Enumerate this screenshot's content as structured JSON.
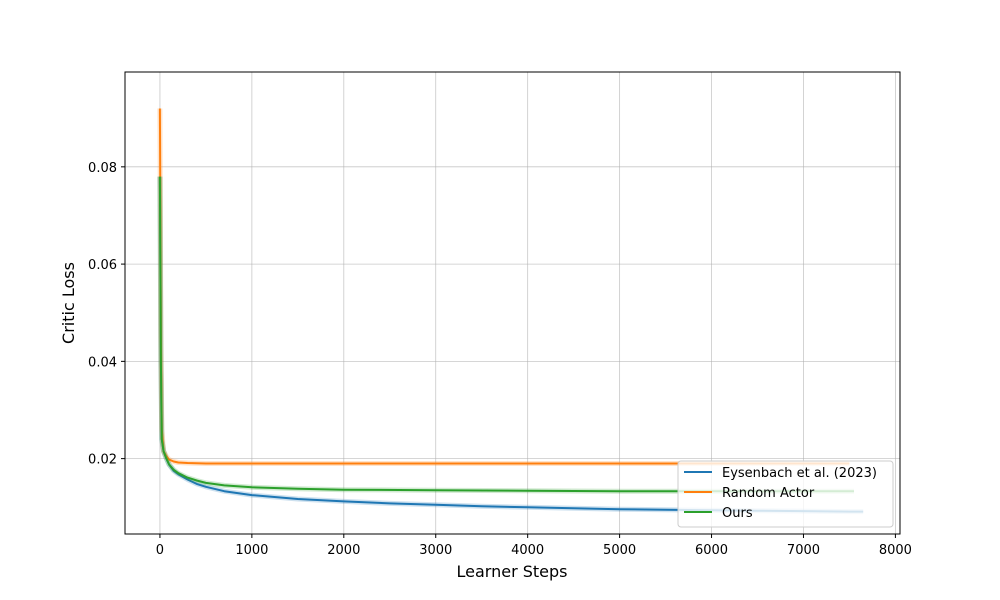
{
  "chart_data": {
    "type": "line",
    "title": "",
    "xlabel": "Learner Steps",
    "ylabel": "Critic Loss",
    "xlim": [
      -380,
      8050
    ],
    "ylim": [
      0.0045,
      0.0995
    ],
    "xticks": [
      0,
      1000,
      2000,
      3000,
      4000,
      5000,
      6000,
      7000,
      8000
    ],
    "xtick_labels": [
      "0",
      "1000",
      "2000",
      "3000",
      "4000",
      "5000",
      "6000",
      "7000",
      "8000"
    ],
    "yticks": [
      0.02,
      0.04,
      0.06,
      0.08
    ],
    "ytick_labels": [
      "0.02",
      "0.04",
      "0.06",
      "0.08"
    ],
    "grid": true,
    "legend_position": "bottom-right",
    "series": [
      {
        "name": "Eysenbach et al. (2023)",
        "color": "#1f77b4",
        "x": [
          0,
          5,
          10,
          20,
          40,
          70,
          100,
          150,
          200,
          300,
          400,
          500,
          700,
          1000,
          1500,
          2000,
          2500,
          3000,
          3500,
          4000,
          4500,
          5000,
          5500,
          6000,
          6500,
          7000,
          7500,
          7650
        ],
        "y": [
          0.078,
          0.06,
          0.04,
          0.024,
          0.0215,
          0.02,
          0.0188,
          0.0175,
          0.0168,
          0.0157,
          0.0148,
          0.0142,
          0.0133,
          0.0125,
          0.0117,
          0.0112,
          0.0108,
          0.0105,
          0.0102,
          0.01,
          0.0098,
          0.0096,
          0.0095,
          0.0094,
          0.0093,
          0.0092,
          0.0091,
          0.0091
        ]
      },
      {
        "name": "Random Actor",
        "color": "#ff7f0e",
        "x": [
          0,
          5,
          10,
          20,
          40,
          70,
          100,
          150,
          200,
          300,
          500,
          700,
          1000,
          2000,
          3000,
          4000,
          5000,
          6000,
          7000,
          7500
        ],
        "y": [
          0.092,
          0.07,
          0.045,
          0.026,
          0.0215,
          0.0205,
          0.0198,
          0.0194,
          0.0192,
          0.0191,
          0.019,
          0.019,
          0.019,
          0.019,
          0.019,
          0.019,
          0.019,
          0.019,
          0.019,
          0.019
        ]
      },
      {
        "name": "Ours",
        "color": "#2ca02c",
        "x": [
          0,
          5,
          10,
          20,
          40,
          70,
          100,
          150,
          200,
          300,
          400,
          500,
          700,
          1000,
          1500,
          2000,
          3000,
          4000,
          5000,
          6000,
          7000,
          7550
        ],
        "y": [
          0.078,
          0.06,
          0.04,
          0.024,
          0.0215,
          0.02,
          0.0188,
          0.0177,
          0.017,
          0.0161,
          0.0155,
          0.015,
          0.0145,
          0.0141,
          0.0138,
          0.0136,
          0.0135,
          0.0134,
          0.0133,
          0.0133,
          0.0133,
          0.0133
        ]
      }
    ]
  }
}
